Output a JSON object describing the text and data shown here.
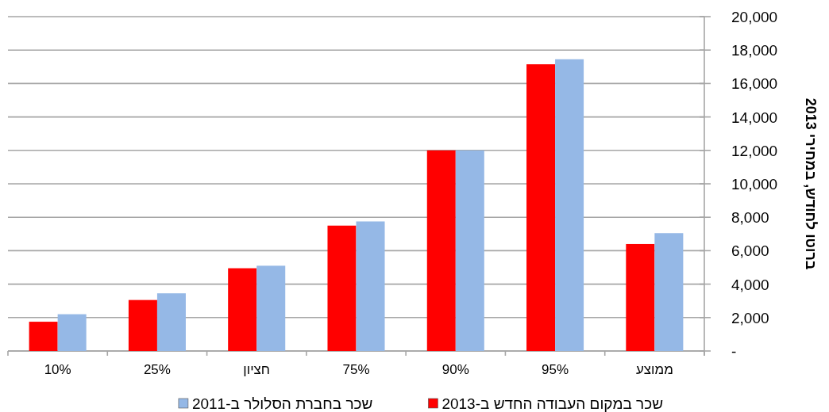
{
  "chart_data": {
    "type": "bar",
    "ylabel": "ברוטו לחודש, במחירי 2013",
    "categories": [
      "10%",
      "25%",
      "חציון",
      "75%",
      "90%",
      "95%",
      "ממוצע"
    ],
    "series": [
      {
        "name": "שכר במקום העבודה החדש ב-2013",
        "color": "#ff0000",
        "values": [
          1750,
          3050,
          4950,
          7500,
          12000,
          17150,
          6400
        ]
      },
      {
        "name": "שכר בחברת הסלולר ב-2011",
        "color": "#95b8e6",
        "values": [
          2200,
          3450,
          5100,
          7750,
          12000,
          17450,
          7050
        ]
      }
    ],
    "ylim": [
      0,
      20000
    ],
    "yticks": [
      {
        "value": 0,
        "label": "-"
      },
      {
        "value": 2000,
        "label": "2,000"
      },
      {
        "value": 4000,
        "label": "4,000"
      },
      {
        "value": 6000,
        "label": "6,000"
      },
      {
        "value": 8000,
        "label": "8,000"
      },
      {
        "value": 10000,
        "label": "10,000"
      },
      {
        "value": 12000,
        "label": "12,000"
      },
      {
        "value": 14000,
        "label": "14,000"
      },
      {
        "value": 16000,
        "label": "16,000"
      },
      {
        "value": 18000,
        "label": "18,000"
      },
      {
        "value": 20000,
        "label": "20,000"
      }
    ],
    "grid": "y",
    "legend": "bottom"
  }
}
